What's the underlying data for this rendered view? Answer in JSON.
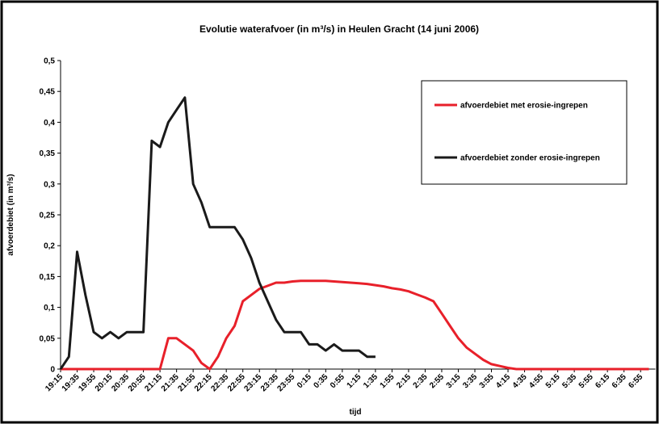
{
  "chart_data": {
    "type": "line",
    "title": "Evolutie waterafvoer (in m³/s) in Heulen Gracht (14 juni 2006)",
    "x_label": "tijd",
    "y_label": "afvoerdebiet (in m³/s)",
    "categories": [
      "19:15",
      null,
      "19:35",
      null,
      "19:55",
      null,
      "20:15",
      null,
      "20:35",
      null,
      "20:55",
      null,
      "21:15",
      null,
      "21:35",
      null,
      "21:55",
      null,
      "22:15",
      null,
      "22:35",
      null,
      "22:55",
      null,
      "23:15",
      null,
      "23:35",
      null,
      "23:55",
      null,
      "0:15",
      null,
      "0:35",
      null,
      "0:55",
      null,
      "1:15",
      null,
      "1:35",
      null,
      "1:55",
      null,
      "2:15",
      null,
      "2:35",
      null,
      "2:55",
      null,
      "3:15",
      null,
      "3:35",
      null,
      "3:55",
      null,
      "4:15",
      null,
      "4:35",
      null,
      "4:55",
      null,
      "5:15",
      null,
      "5:35",
      null,
      "5:55",
      null,
      "6:15",
      null,
      "6:35",
      null,
      "6:55",
      null
    ],
    "series": [
      {
        "name": "afvoerdebiet met erosie-ingrepen",
        "color": "#e8202a",
        "values": [
          0,
          0,
          0,
          0,
          0,
          0,
          0,
          0,
          0,
          0,
          0,
          0,
          0,
          0.05,
          0.05,
          0.04,
          0.03,
          0.01,
          0,
          0.02,
          0.05,
          0.07,
          0.11,
          0.12,
          0.13,
          0.135,
          0.14,
          0.14,
          0.142,
          0.143,
          0.143,
          0.143,
          0.143,
          0.142,
          0.141,
          0.14,
          0.139,
          0.138,
          0.136,
          0.134,
          0.131,
          0.129,
          0.126,
          0.121,
          0.116,
          0.11,
          0.09,
          0.07,
          0.05,
          0.035,
          0.025,
          0.015,
          0.008,
          0.005,
          0.002,
          0,
          0,
          0,
          0,
          0,
          0,
          0,
          0,
          0,
          0,
          0,
          0,
          0,
          0,
          0,
          0,
          0
        ]
      },
      {
        "name": "afvoerdebiet zonder erosie-ingrepen",
        "color": "#1a1a1a",
        "values": [
          0,
          0.02,
          0.19,
          0.12,
          0.06,
          0.05,
          0.06,
          0.05,
          0.06,
          0.06,
          0.06,
          0.37,
          0.36,
          0.4,
          0.42,
          0.44,
          0.3,
          0.27,
          0.23,
          0.23,
          0.23,
          0.23,
          0.21,
          0.18,
          0.14,
          0.11,
          0.08,
          0.06,
          0.06,
          0.06,
          0.04,
          0.04,
          0.03,
          0.04,
          0.03,
          0.03,
          0.03,
          0.02,
          0.02,
          null,
          null,
          null,
          null,
          null,
          null,
          null,
          null,
          null,
          null,
          null,
          null,
          null,
          null,
          null,
          null,
          null,
          null,
          null,
          null,
          null,
          null,
          null,
          null,
          null,
          null,
          null,
          null,
          null,
          null,
          null,
          null,
          null
        ]
      }
    ],
    "ylim": [
      0,
      0.5
    ],
    "yticks": [
      0,
      {
        "value": 0.05,
        "label": "0,05"
      },
      {
        "value": 0.1,
        "label": "0,1"
      },
      {
        "value": 0.15,
        "label": "0,15"
      },
      {
        "value": 0.2,
        "label": "0,2"
      },
      {
        "value": 0.25,
        "label": "0,25"
      },
      {
        "value": 0.3,
        "label": "0,3"
      },
      {
        "value": 0.35,
        "label": "0,35"
      },
      {
        "value": 0.4,
        "label": "0,4"
      },
      {
        "value": 0.45,
        "label": "0,45"
      },
      {
        "value": 0.5,
        "label": "0,5"
      }
    ],
    "legend": "upper right",
    "grid": false
  }
}
